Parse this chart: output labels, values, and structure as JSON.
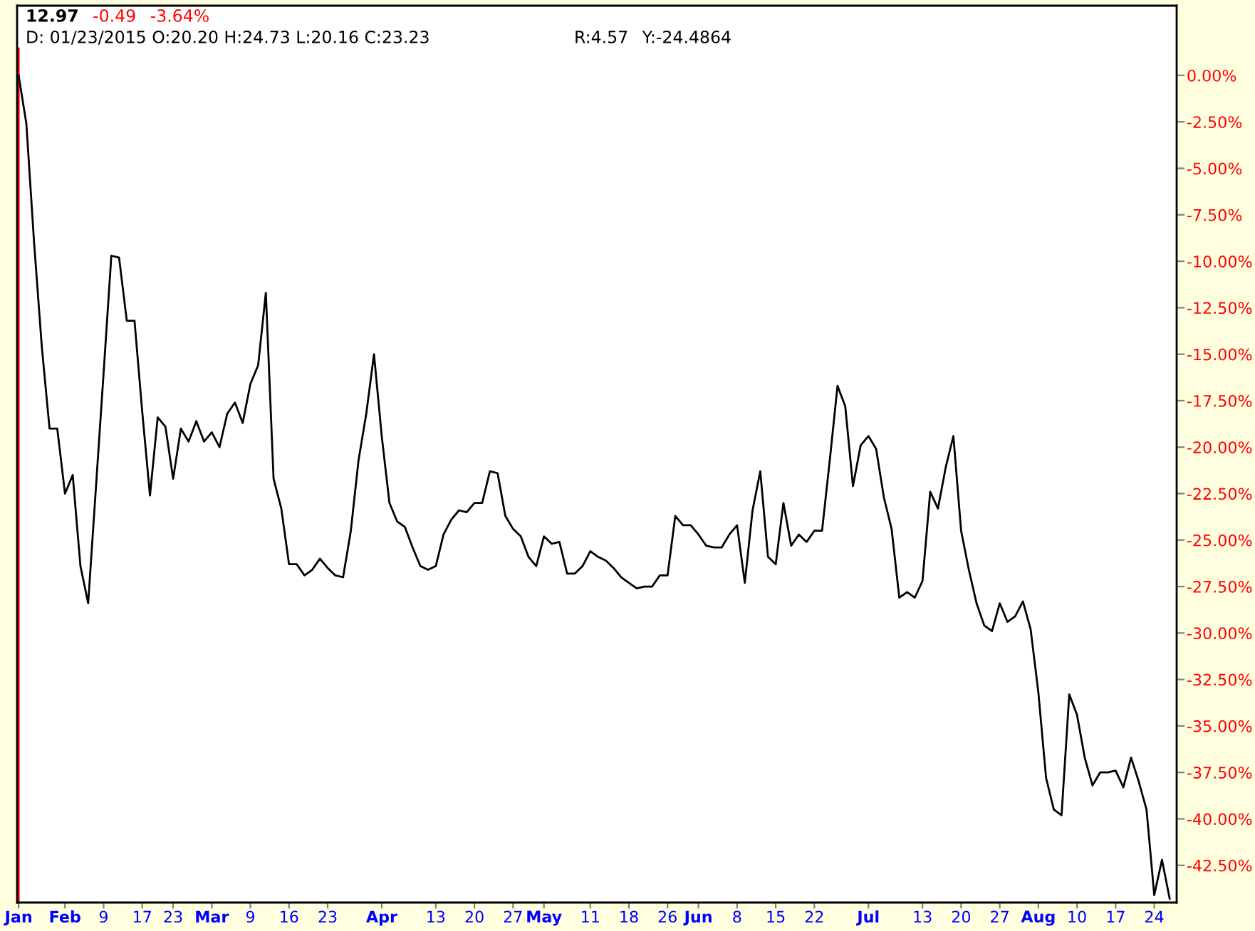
{
  "chart_data": {
    "type": "line",
    "categories": [
      "Jan",
      null,
      null,
      null,
      null,
      null,
      "Feb",
      null,
      null,
      null,
      null,
      "9",
      null,
      null,
      null,
      null,
      "17",
      null,
      null,
      null,
      "23",
      null,
      null,
      null,
      null,
      "Mar",
      null,
      null,
      null,
      null,
      "9",
      null,
      null,
      null,
      null,
      "16",
      null,
      null,
      null,
      null,
      "23",
      null,
      null,
      null,
      null,
      null,
      null,
      "Apr",
      null,
      null,
      null,
      null,
      null,
      null,
      "13",
      null,
      null,
      null,
      null,
      "20",
      null,
      null,
      null,
      null,
      "27",
      null,
      null,
      null,
      "May",
      null,
      null,
      null,
      null,
      null,
      "11",
      null,
      null,
      null,
      null,
      "18",
      null,
      null,
      null,
      null,
      "26",
      null,
      null,
      null,
      "Jun",
      null,
      null,
      null,
      null,
      "8",
      null,
      null,
      null,
      null,
      "15",
      null,
      null,
      null,
      null,
      "22",
      null,
      null,
      null,
      null,
      null,
      null,
      "Jul",
      null,
      null,
      null,
      null,
      null,
      null,
      "13",
      null,
      null,
      null,
      null,
      "20",
      null,
      null,
      null,
      null,
      "27",
      null,
      null,
      null,
      null,
      "Aug",
      null,
      null,
      null,
      null,
      "10",
      null,
      null,
      null,
      null,
      "17",
      null,
      null,
      null,
      null,
      "24",
      null,
      null
    ],
    "series": [
      {
        "color": "#000000",
        "values": [
          0.0,
          -2.6,
          -9.0,
          -14.6,
          -19.0,
          -19.0,
          -22.5,
          -21.5,
          -26.4,
          -28.4,
          -22.2,
          -16.0,
          -9.7,
          -9.8,
          -13.2,
          -13.2,
          -18.1,
          -22.6,
          -18.4,
          -18.9,
          -21.7,
          -19.0,
          -19.7,
          -18.6,
          -19.7,
          -19.2,
          -20.0,
          -18.2,
          -17.6,
          -18.7,
          -16.6,
          -15.6,
          -11.7,
          -21.7,
          -23.3,
          -26.3,
          -26.3,
          -26.9,
          -26.6,
          -26.0,
          -26.5,
          -26.9,
          -27.0,
          -24.5,
          -20.7,
          -18.2,
          -15.0,
          -19.4,
          -23.0,
          -24.0,
          -24.3,
          -25.4,
          -26.4,
          -26.6,
          -26.4,
          -24.7,
          -23.9,
          -23.4,
          -23.5,
          -23.0,
          -23.0,
          -21.3,
          -21.4,
          -23.7,
          -24.4,
          -24.8,
          -25.9,
          -26.4,
          -24.8,
          -25.2,
          -25.1,
          -26.8,
          -26.8,
          -26.4,
          -25.6,
          -25.9,
          -26.1,
          -26.5,
          -27.0,
          -27.3,
          -27.6,
          -27.5,
          -27.5,
          -26.9,
          -26.9,
          -23.7,
          -24.2,
          -24.2,
          -24.7,
          -25.3,
          -25.4,
          -25.4,
          -24.7,
          -24.2,
          -27.3,
          -23.4,
          -21.3,
          -25.9,
          -26.3,
          -23.0,
          -25.3,
          -24.7,
          -25.1,
          -24.5,
          -24.5,
          -20.7,
          -16.7,
          -17.8,
          -22.1,
          -19.9,
          -19.4,
          -20.1,
          -22.7,
          -24.4,
          -28.1,
          -27.8,
          -28.1,
          -27.2,
          -22.4,
          -23.3,
          -21.1,
          -19.4,
          -24.5,
          -26.6,
          -28.4,
          -29.6,
          -29.9,
          -28.4,
          -29.4,
          -29.1,
          -28.3,
          -29.8,
          -33.2,
          -37.8,
          -39.5,
          -39.8,
          -33.3,
          -34.4,
          -36.7,
          -38.2,
          -37.5,
          -37.5,
          -37.4,
          -38.3,
          -36.7,
          -38.0,
          -39.5,
          -44.1,
          -42.2,
          -44.3
        ]
      }
    ],
    "ylim": [
      -44.5,
      3.75
    ],
    "yticks": [
      {
        "value": 0,
        "label": "0.00%"
      },
      {
        "value": -2.5,
        "label": "-2.50%"
      },
      {
        "value": -5,
        "label": "-5.00%"
      },
      {
        "value": -7.5,
        "label": "-7.50%"
      },
      {
        "value": -10,
        "label": "-10.00%"
      },
      {
        "value": -12.5,
        "label": "-12.50%"
      },
      {
        "value": -15,
        "label": "-15.00%"
      },
      {
        "value": -17.5,
        "label": "-17.50%"
      },
      {
        "value": -20,
        "label": "-20.00%"
      },
      {
        "value": -22.5,
        "label": "-22.50%"
      },
      {
        "value": -25,
        "label": "-25.00%"
      },
      {
        "value": -27.5,
        "label": "-27.50%"
      },
      {
        "value": -30,
        "label": "-30.00%"
      },
      {
        "value": -32.5,
        "label": "-32.50%"
      },
      {
        "value": -35,
        "label": "-35.00%"
      },
      {
        "value": -37.5,
        "label": "-37.50%"
      },
      {
        "value": -40,
        "label": "-40.00%"
      },
      {
        "value": -42.5,
        "label": "-42.50%"
      }
    ],
    "ref_lines": [
      {
        "axis": "x",
        "value": "Jan",
        "label": null,
        "color": "#ff0000"
      }
    ],
    "annotations": [
      "12.97",
      "-0.49",
      "-3.64%",
      "D: 01/23/2015 O:20.20 H:24.73 L:20.16 C:23.23",
      "R:4.57",
      "Y:-24.4864"
    ]
  }
}
